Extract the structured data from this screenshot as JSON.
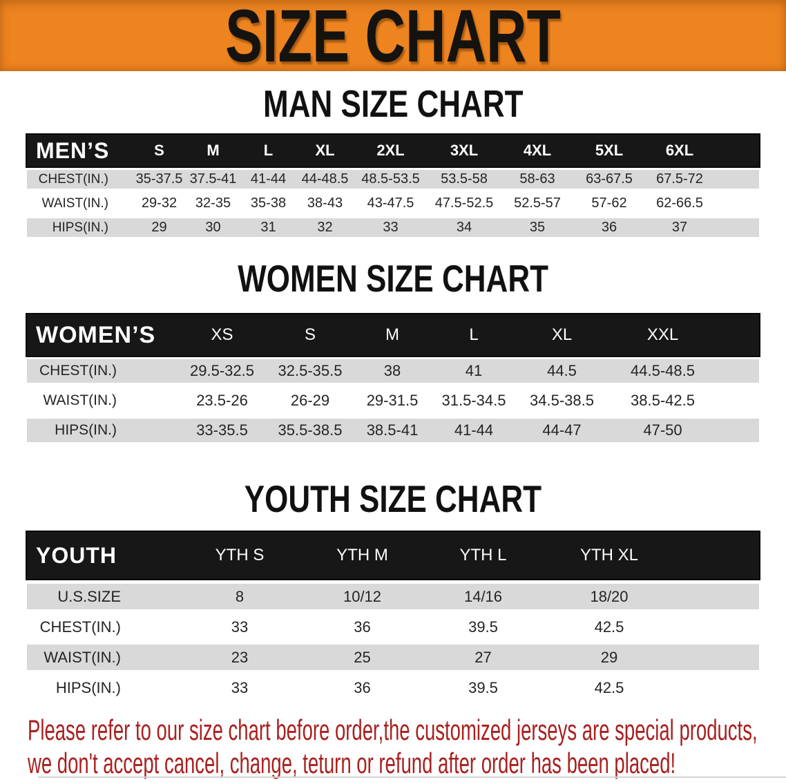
{
  "banner": {
    "title": "SIZE CHART",
    "background_color": "#ee8420",
    "text_color": "#151310"
  },
  "sections": [
    {
      "key": "men",
      "heading": "MAN SIZE CHART",
      "corner_label": "MEN’S",
      "sizes": [
        "S",
        "M",
        "L",
        "XL",
        "2XL",
        "3XL",
        "4XL",
        "5XL",
        "6XL"
      ],
      "rows": [
        {
          "label": "CHEST(IN.)",
          "values": [
            "35-37.5",
            "37.5-41",
            "41-44",
            "44-48.5",
            "48.5-53.5",
            "53.5-58",
            "58-63",
            "63-67.5",
            "67.5-72"
          ]
        },
        {
          "label": "WAIST(IN.)",
          "values": [
            "29-32",
            "32-35",
            "35-38",
            "38-43",
            "43-47.5",
            "47.5-52.5",
            "52.5-57",
            "57-62",
            "62-66.5"
          ]
        },
        {
          "label": "HIPS(IN.)",
          "values": [
            "29",
            "30",
            "31",
            "32",
            "33",
            "34",
            "35",
            "36",
            "37"
          ]
        }
      ]
    },
    {
      "key": "women",
      "heading": "WOMEN SIZE CHART",
      "corner_label": "WOMEN’S",
      "sizes": [
        "XS",
        "S",
        "M",
        "L",
        "XL",
        "XXL"
      ],
      "rows": [
        {
          "label": "CHEST(IN.)",
          "values": [
            "29.5-32.5",
            "32.5-35.5",
            "38",
            "41",
            "44.5",
            "44.5-48.5"
          ]
        },
        {
          "label": "WAIST(IN.)",
          "values": [
            "23.5-26",
            "26-29",
            "29-31.5",
            "31.5-34.5",
            "34.5-38.5",
            "38.5-42.5"
          ]
        },
        {
          "label": "HIPS(IN.)",
          "values": [
            "33-35.5",
            "35.5-38.5",
            "38.5-41",
            "41-44",
            "44-47",
            "47-50"
          ]
        }
      ]
    },
    {
      "key": "youth",
      "heading": "YOUTH SIZE CHART",
      "corner_label": "YOUTH",
      "sizes": [
        "YTH S",
        "YTH M",
        "YTH L",
        "YTH XL"
      ],
      "rows": [
        {
          "label": "U.S.SIZE",
          "values": [
            "8",
            "10/12",
            "14/16",
            "18/20"
          ]
        },
        {
          "label": "CHEST(IN.)",
          "values": [
            "33",
            "36",
            "39.5",
            "42.5"
          ]
        },
        {
          "label": "WAIST(IN.)",
          "values": [
            "23",
            "25",
            "27",
            "29"
          ]
        },
        {
          "label": "HIPS(IN.)",
          "values": [
            "33",
            "36",
            "39.5",
            "42.5"
          ]
        }
      ]
    }
  ],
  "disclaimer": {
    "line1": "Please refer to our size chart before order,the customized jerseys are special products,",
    "line2": "we don't accept cancel, change, teturn or refund after order has been placed!",
    "color": "#a9201f"
  },
  "colors": {
    "header_bar": "#171717",
    "row_gray": "#d9d9d9",
    "row_white": "#ffffff",
    "body_text": "#242424",
    "header_text": "#ffffff"
  }
}
